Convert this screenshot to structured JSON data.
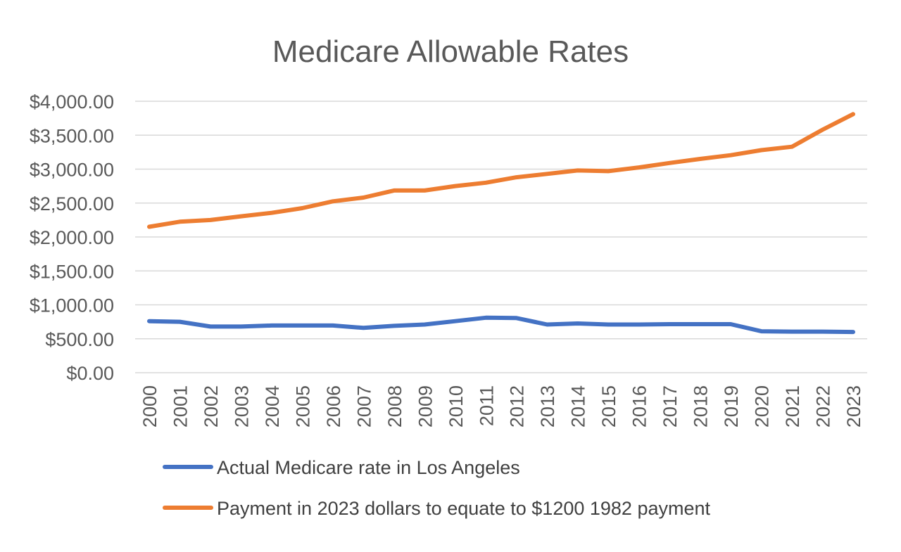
{
  "chart_data": {
    "type": "line",
    "title": "Medicare Allowable Rates",
    "xlabel": "",
    "ylabel": "",
    "ylim": [
      0,
      4000
    ],
    "yticks": [
      "$0.00",
      "$500.00",
      "$1,000.00",
      "$1,500.00",
      "$2,000.00",
      "$2,500.00",
      "$3,000.00",
      "$3,500.00",
      "$4,000.00"
    ],
    "categories": [
      "2000",
      "2001",
      "2002",
      "2003",
      "2004",
      "2005",
      "2006",
      "2007",
      "2008",
      "2009",
      "2010",
      "2011",
      "2012",
      "2013",
      "2014",
      "2015",
      "2016",
      "2017",
      "2018",
      "2019",
      "2020",
      "2021",
      "2022",
      "2023"
    ],
    "grid": true,
    "legend_position": "bottom",
    "series": [
      {
        "name": "Actual Medicare rate in Los Angeles",
        "color": "#4472c4",
        "values": [
          760,
          750,
          680,
          680,
          695,
          695,
          695,
          660,
          690,
          710,
          760,
          810,
          805,
          710,
          725,
          710,
          710,
          715,
          715,
          715,
          610,
          605,
          605,
          600
        ]
      },
      {
        "name": "Payment in 2023 dollars to equate to $1200 1982 payment",
        "color": "#ed7d31",
        "values": [
          2150,
          2225,
          2250,
          2305,
          2355,
          2425,
          2525,
          2580,
          2685,
          2685,
          2750,
          2800,
          2880,
          2930,
          2980,
          2970,
          3025,
          3090,
          3150,
          3205,
          3280,
          3330,
          3580,
          3810
        ]
      }
    ]
  }
}
